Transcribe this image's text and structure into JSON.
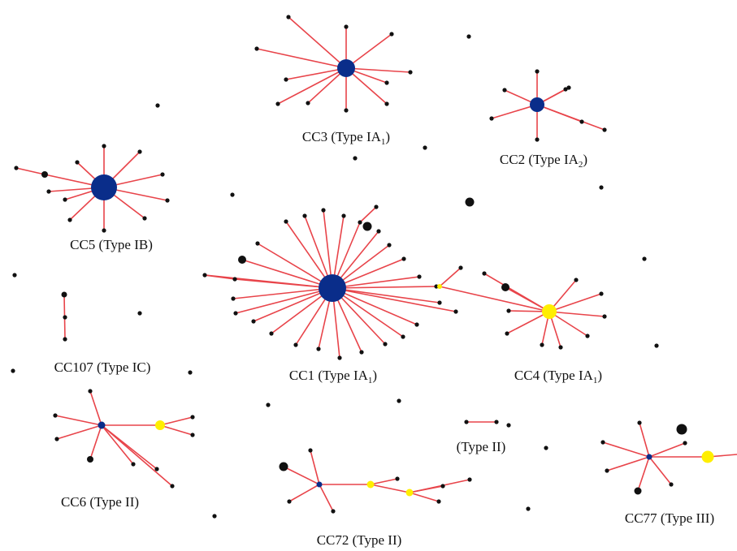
{
  "colors": {
    "edge": "#e8444a",
    "leaf": "#111111",
    "founder_blue": "#0a2d8a",
    "founder_yellow": "#ffee00",
    "text": "#111111"
  },
  "clusters": {
    "cc3": {
      "name": "CC3",
      "type_prefix": "(Type IA",
      "type_sub": "1",
      "type_suffix": ")"
    },
    "cc2": {
      "name": "CC2",
      "type_prefix": "(Type IA",
      "type_sub": "2",
      "type_suffix": ")"
    },
    "cc5": {
      "name": "CC5",
      "type": "(Type IB)"
    },
    "cc107": {
      "name": "CC107",
      "type": "(Type IC)"
    },
    "cc1": {
      "name": "CC1",
      "type_prefix": "(Type IA",
      "type_sub": "1",
      "type_suffix": ")"
    },
    "cc4": {
      "name": "CC4",
      "type_prefix": "(Type IA",
      "type_sub": "1",
      "type_suffix": ")"
    },
    "cc6": {
      "name": "CC6",
      "type": "(Type II)"
    },
    "pair": {
      "type": "(Type II)"
    },
    "cc72": {
      "name": "CC72",
      "type": "(Type II)"
    },
    "cc77": {
      "name": "CC77",
      "type": "(Type III)"
    }
  }
}
